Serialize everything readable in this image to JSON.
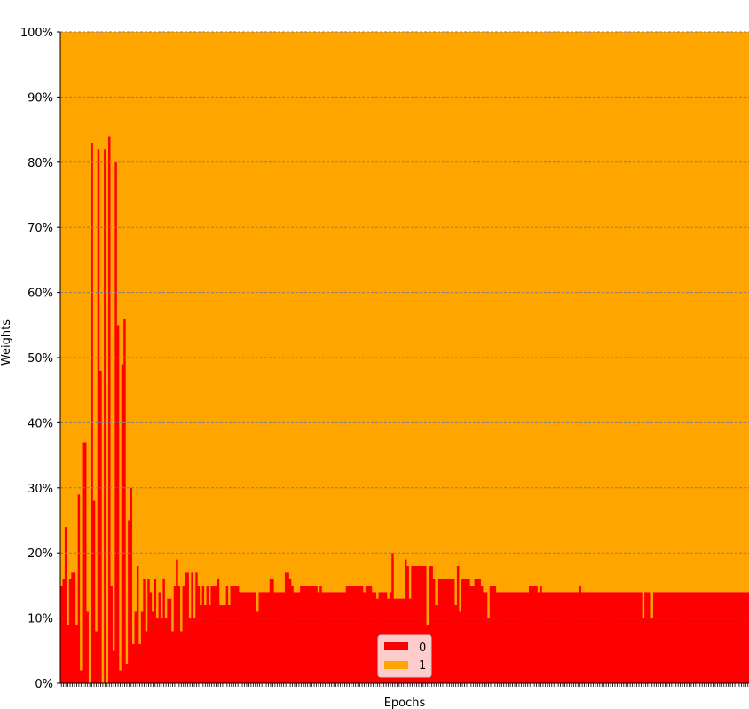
{
  "chart_data": {
    "type": "bar",
    "stacked": true,
    "normalized": true,
    "xlabel": "Epochs",
    "ylabel": "Weights",
    "x_tick_labels_visible": false,
    "ylim": [
      0,
      100
    ],
    "yticks": [
      "0%",
      "10%",
      "20%",
      "30%",
      "40%",
      "50%",
      "60%",
      "70%",
      "80%",
      "90%",
      "100%"
    ],
    "grid": "horizontal dashed",
    "legend": {
      "placement": "bottom-center",
      "entries": [
        {
          "label": "0",
          "color": "#ff0000"
        },
        {
          "label": "1",
          "color": "#ffa500"
        }
      ]
    },
    "num_epochs": 300,
    "series": [
      {
        "name": "0",
        "color": "#ff0000",
        "values": [
          15,
          16,
          24,
          9,
          16,
          17,
          17,
          9,
          29,
          2,
          37,
          37,
          11,
          0,
          83,
          28,
          8,
          82,
          48,
          0,
          82,
          0,
          84,
          15,
          5,
          80,
          55,
          2,
          49,
          56,
          3,
          25,
          30,
          6,
          11,
          18,
          6,
          11,
          16,
          8,
          16,
          14,
          11,
          16,
          10,
          14,
          10,
          16,
          10,
          13,
          13,
          8,
          15,
          19,
          15,
          8,
          15,
          17,
          17,
          10,
          17,
          10,
          17,
          15,
          12,
          15,
          12,
          15,
          12,
          15,
          15,
          15,
          16,
          12,
          12,
          12,
          15,
          12,
          15,
          15,
          15,
          15,
          14,
          14,
          14,
          14,
          14,
          14,
          14,
          14,
          11,
          14,
          14,
          14,
          14,
          14,
          16,
          16,
          14,
          14,
          14,
          14,
          14,
          17,
          17,
          16,
          15,
          14,
          14,
          14,
          15,
          15,
          15,
          15,
          15,
          15,
          15,
          15,
          14,
          15,
          14,
          14,
          14,
          14,
          14,
          14,
          14,
          14,
          14,
          14,
          14,
          15,
          15,
          15,
          15,
          15,
          15,
          15,
          15,
          14,
          15,
          15,
          15,
          14,
          14,
          13,
          14,
          14,
          14,
          14,
          13,
          14,
          20,
          13,
          13,
          13,
          13,
          13,
          19,
          18,
          13,
          18,
          18,
          18,
          18,
          18,
          18,
          18,
          9,
          18,
          18,
          16,
          12,
          16,
          16,
          16,
          16,
          16,
          16,
          16,
          16,
          12,
          18,
          11,
          16,
          16,
          16,
          16,
          15,
          15,
          16,
          16,
          16,
          15,
          14,
          14,
          10,
          15,
          15,
          15,
          14,
          14,
          14,
          14,
          14,
          14,
          14,
          14,
          14,
          14,
          14,
          14,
          14,
          14,
          14,
          15,
          15,
          15,
          15,
          14,
          15,
          14,
          14,
          14,
          14,
          14,
          14,
          14,
          14,
          14,
          14,
          14,
          14,
          14,
          14,
          14,
          14,
          14,
          15,
          14,
          14,
          14,
          14,
          14,
          14,
          14,
          14,
          14,
          14,
          14,
          14,
          14,
          14,
          14,
          14,
          14,
          14,
          14,
          14,
          14,
          14,
          14,
          14,
          14,
          14,
          14,
          14,
          10,
          14,
          14,
          14,
          10,
          14,
          14,
          14,
          14,
          14,
          14,
          14,
          14,
          14,
          14,
          14,
          14,
          14,
          14,
          14,
          14,
          14,
          14,
          14,
          14,
          14,
          14,
          14,
          14,
          14,
          14,
          14,
          14,
          14,
          14,
          14,
          14,
          14,
          14,
          14,
          14,
          14,
          14,
          14,
          14,
          14,
          14,
          14,
          14
        ]
      },
      {
        "name": "1",
        "color": "#ffa500",
        "values": "100 - series[0]"
      }
    ]
  }
}
